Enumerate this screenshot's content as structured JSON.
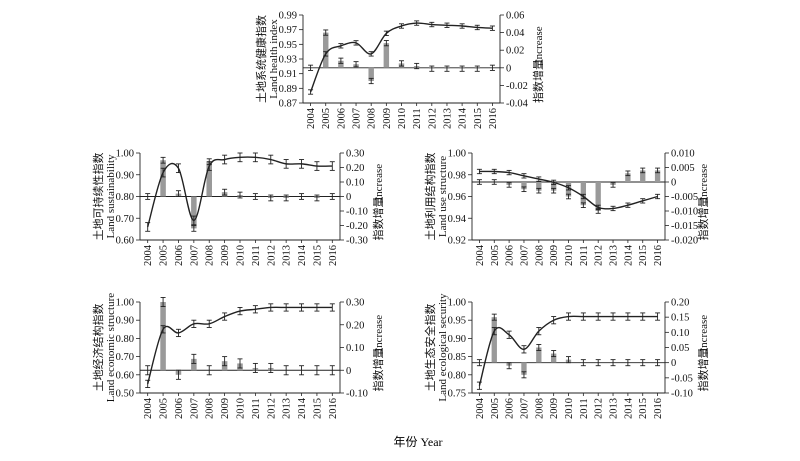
{
  "figure": {
    "xlabel": "年份 Year"
  },
  "chart_data": [
    {
      "id": "health",
      "type": "line+bar",
      "ylabel_left_cn": "土地系统健康指数",
      "ylabel_left_en": "Land health index",
      "ylabel_right_cn": "指数增量",
      "ylabel_right_en": "Increase",
      "left_ticks": [
        "0.99",
        "0.97",
        "0.95",
        "0.93",
        "0.91",
        "0.89",
        "0.87"
      ],
      "right_ticks": [
        "0.06",
        "0.04",
        "0.02",
        "0",
        "-0.02",
        "-0.04"
      ],
      "ylim_left": [
        0.87,
        0.99
      ],
      "ylim_right": [
        -0.04,
        0.06
      ],
      "x": [
        "2004",
        "2005",
        "2006",
        "2007",
        "2008",
        "2009",
        "2010",
        "2011",
        "2012",
        "2013",
        "2014",
        "2015",
        "2016"
      ],
      "index": [
        0.885,
        0.937,
        0.948,
        0.952,
        0.937,
        0.965,
        0.975,
        0.979,
        0.977,
        0.976,
        0.975,
        0.973,
        0.972
      ],
      "increase": [
        0,
        0.04,
        0.008,
        0.004,
        -0.015,
        0.028,
        0.005,
        0.002,
        -0.001,
        -0.001,
        -0.001,
        -0.001,
        0
      ],
      "index_err": 0.003,
      "increase_err": 0.003
    },
    {
      "id": "sustainability",
      "type": "line+bar",
      "ylabel_left_cn": "土地可持续性指数",
      "ylabel_left_en": "Land sustainability",
      "ylabel_right_cn": "指数增量",
      "ylabel_right_en": "Increase",
      "left_ticks": [
        "1.00",
        "0.90",
        "0.80",
        "0.70",
        "0.60"
      ],
      "right_ticks": [
        "0.30",
        "0.20",
        "0.10",
        "0",
        "-0.10",
        "-0.20",
        "-0.30"
      ],
      "ylim_left": [
        0.6,
        1.0
      ],
      "ylim_right": [
        -0.3,
        0.3
      ],
      "x": [
        "2004",
        "2005",
        "2006",
        "2007",
        "2008",
        "2009",
        "2010",
        "2011",
        "2012",
        "2013",
        "2014",
        "2015",
        "2016"
      ],
      "index": [
        0.66,
        0.91,
        0.93,
        0.69,
        0.94,
        0.97,
        0.98,
        0.98,
        0.97,
        0.95,
        0.95,
        0.94,
        0.94
      ],
      "increase": [
        0,
        0.25,
        0.02,
        -0.22,
        0.24,
        0.03,
        0.01,
        0.0,
        -0.01,
        -0.01,
        0.0,
        -0.01,
        0.0
      ],
      "index_err": 0.02,
      "increase_err": 0.02
    },
    {
      "id": "use_structure",
      "type": "line+bar",
      "ylabel_left_cn": "土地利用结构指数",
      "ylabel_left_en": "Land use structure",
      "ylabel_right_cn": "指数增量",
      "ylabel_right_en": "Increase",
      "left_ticks": [
        "1.00",
        "0.98",
        "0.96",
        "0.94",
        "0.92"
      ],
      "right_ticks": [
        "0.010",
        "0.005",
        "0",
        "-0.005",
        "-0.010",
        "-0.015",
        "-0.020"
      ],
      "ylim_left": [
        0.92,
        1.0
      ],
      "ylim_right": [
        -0.02,
        0.01
      ],
      "x": [
        "2004",
        "2005",
        "2006",
        "2007",
        "2008",
        "2009",
        "2010",
        "2011",
        "2012",
        "2013",
        "2014",
        "2015",
        "2016"
      ],
      "index": [
        0.983,
        0.983,
        0.982,
        0.979,
        0.976,
        0.973,
        0.968,
        0.96,
        0.95,
        0.949,
        0.952,
        0.956,
        0.96
      ],
      "increase": [
        0,
        0.0,
        -0.001,
        -0.0025,
        -0.003,
        -0.003,
        -0.005,
        -0.008,
        -0.01,
        -0.001,
        0.003,
        0.004,
        0.004
      ],
      "index_err": 0.002,
      "increase_err": 0.0008
    },
    {
      "id": "economic",
      "type": "line+bar",
      "ylabel_left_cn": "土地经济结构指数",
      "ylabel_left_en": "Land economic structure",
      "ylabel_right_cn": "指数增量",
      "ylabel_right_en": "Increase",
      "left_ticks": [
        "1.00",
        "0.90",
        "0.80",
        "0.70",
        "0.60",
        "0.50"
      ],
      "right_ticks": [
        "0.30",
        "0.20",
        "0.10",
        "0",
        "-0.10"
      ],
      "ylim_left": [
        0.5,
        1.0
      ],
      "ylim_right": [
        -0.1,
        0.3
      ],
      "x": [
        "2004",
        "2005",
        "2006",
        "2007",
        "2008",
        "2009",
        "2010",
        "2011",
        "2012",
        "2013",
        "2014",
        "2015",
        "2016"
      ],
      "index": [
        0.55,
        0.85,
        0.83,
        0.88,
        0.88,
        0.92,
        0.95,
        0.96,
        0.97,
        0.97,
        0.97,
        0.97,
        0.97
      ],
      "increase": [
        0,
        0.3,
        -0.02,
        0.05,
        0.0,
        0.04,
        0.03,
        0.01,
        0.01,
        0.0,
        0.0,
        0.0,
        0.0
      ],
      "index_err": 0.02,
      "increase_err": 0.02
    },
    {
      "id": "ecological",
      "type": "line+bar",
      "ylabel_left_cn": "土地生态安全指数",
      "ylabel_left_en": "Land ecological security",
      "ylabel_right_cn": "指数增量",
      "ylabel_right_en": "Increase",
      "left_ticks": [
        "1.00",
        "0.95",
        "0.90",
        "0.85",
        "0.80",
        "0.75"
      ],
      "right_ticks": [
        "0.20",
        "0.15",
        "0.10",
        "0.05",
        "0",
        "-0.05",
        "-0.10"
      ],
      "ylim_left": [
        0.75,
        1.0
      ],
      "ylim_right": [
        -0.1,
        0.2
      ],
      "x": [
        "2004",
        "2005",
        "2006",
        "2007",
        "2008",
        "2009",
        "2010",
        "2011",
        "2012",
        "2013",
        "2014",
        "2015",
        "2016"
      ],
      "index": [
        0.77,
        0.92,
        0.91,
        0.87,
        0.92,
        0.95,
        0.96,
        0.96,
        0.96,
        0.96,
        0.96,
        0.96,
        0.96
      ],
      "increase": [
        0,
        0.15,
        -0.01,
        -0.04,
        0.05,
        0.03,
        0.01,
        0.0,
        0.0,
        0.0,
        0.0,
        0.0,
        0.0
      ],
      "index_err": 0.01,
      "increase_err": 0.01
    }
  ]
}
